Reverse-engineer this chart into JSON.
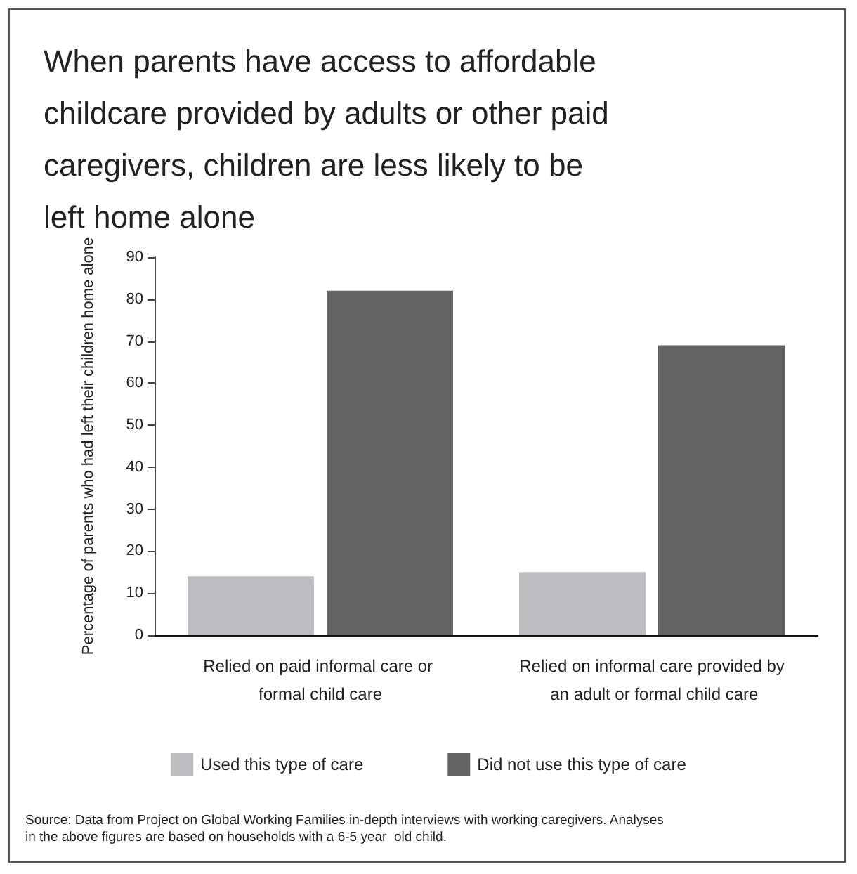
{
  "chart_data": {
    "type": "bar",
    "title": "When parents have access to affordable childcare provided by adults or other paid caregivers, children are less likely to be left home alone",
    "ylabel": "Percentage of parents who had left their children home alone",
    "categories": [
      "Relied on paid informal care or formal child care",
      "Relied on informal care provided by an adult or formal child care"
    ],
    "series": [
      {
        "name": "Used this type of care",
        "color": "#bcbdc0",
        "values": [
          14,
          15
        ]
      },
      {
        "name": "Did not use this type of care",
        "color": "#636365",
        "values": [
          82,
          69
        ]
      }
    ],
    "ylim": [
      0,
      90
    ],
    "yticks": [
      0,
      10,
      20,
      30,
      40,
      50,
      60,
      70,
      80,
      90
    ],
    "grid": false,
    "legend": "bottom",
    "annotations": [
      "Source: Data from Project on Global Working Families in-depth interviews with working caregivers. Analyses in the above figures are based on households with a 6-5 year  old child."
    ]
  }
}
